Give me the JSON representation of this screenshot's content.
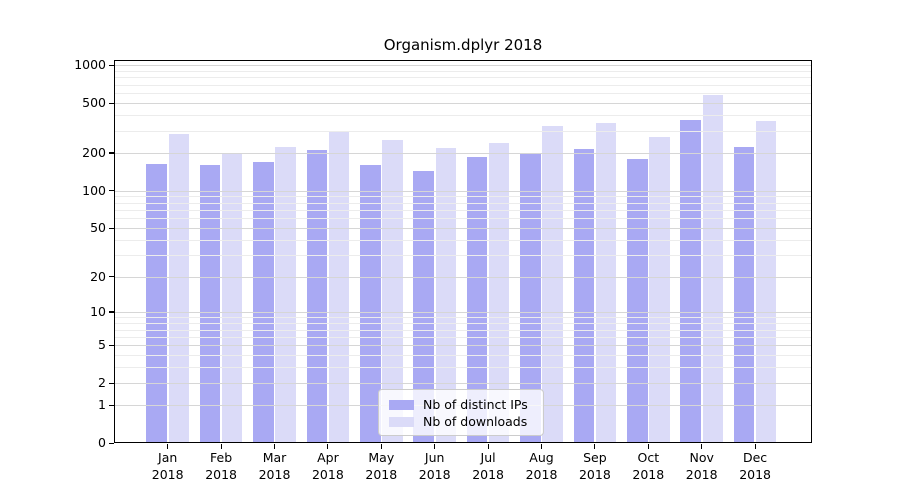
{
  "title": "Organism.dplyr 2018",
  "colors": {
    "distinct_ips": "#a9a9f3",
    "downloads": "#dbdbf8",
    "grid_minor": "#ececec",
    "grid_major": "#d6d6d6",
    "axis": "#000000"
  },
  "legend": {
    "items": [
      {
        "label": "Nb of distinct IPs",
        "series_key": "distinct_ips"
      },
      {
        "label": "Nb of downloads",
        "series_key": "downloads"
      }
    ]
  },
  "y_axis": {
    "ticks": [
      {
        "label": "1000",
        "value": 1000
      },
      {
        "label": "500",
        "value": 500
      },
      {
        "label": "200",
        "value": 200
      },
      {
        "label": "100",
        "value": 100
      },
      {
        "label": "50",
        "value": 50
      },
      {
        "label": "20",
        "value": 20
      },
      {
        "label": "10",
        "value": 10
      },
      {
        "label": "5",
        "value": 5
      },
      {
        "label": "2",
        "value": 2
      },
      {
        "label": "1",
        "value": 1
      },
      {
        "label": "0",
        "value": 0
      }
    ]
  },
  "x_axis": {
    "tick_labels": [
      {
        "line1": "Jan",
        "line2": "2018"
      },
      {
        "line1": "Feb",
        "line2": "2018"
      },
      {
        "line1": "Mar",
        "line2": "2018"
      },
      {
        "line1": "Apr",
        "line2": "2018"
      },
      {
        "line1": "May",
        "line2": "2018"
      },
      {
        "line1": "Jun",
        "line2": "2018"
      },
      {
        "line1": "Jul",
        "line2": "2018"
      },
      {
        "line1": "Aug",
        "line2": "2018"
      },
      {
        "line1": "Sep",
        "line2": "2018"
      },
      {
        "line1": "Oct",
        "line2": "2018"
      },
      {
        "line1": "Nov",
        "line2": "2018"
      },
      {
        "line1": "Dec",
        "line2": "2018"
      }
    ]
  },
  "chart_data": {
    "type": "bar",
    "title": "Organism.dplyr 2018",
    "categories": [
      "Jan 2018",
      "Feb 2018",
      "Mar 2018",
      "Apr 2018",
      "May 2018",
      "Jun 2018",
      "Jul 2018",
      "Aug 2018",
      "Sep 2018",
      "Oct 2018",
      "Nov 2018",
      "Dec 2018"
    ],
    "series": [
      {
        "name": "Nb of distinct IPs",
        "color": "#a9a9f3",
        "values": [
          165,
          160,
          170,
          210,
          160,
          145,
          185,
          195,
          215,
          180,
          365,
          225
        ]
      },
      {
        "name": "Nb of downloads",
        "color": "#dbdbf8",
        "values": [
          285,
          195,
          225,
          300,
          255,
          220,
          240,
          330,
          345,
          270,
          575,
          360
        ]
      }
    ],
    "yscale": "log10(v+1)",
    "ylim": [
      0,
      1000
    ],
    "yticks": [
      0,
      1,
      2,
      5,
      10,
      20,
      50,
      100,
      200,
      500,
      1000
    ],
    "grid": true,
    "legend_position": "lower center"
  }
}
